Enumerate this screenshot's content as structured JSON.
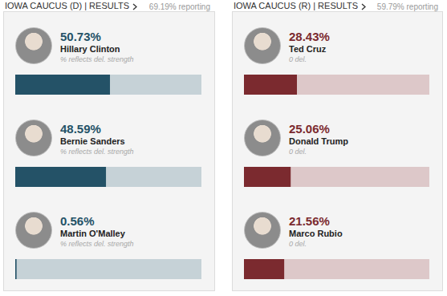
{
  "chart_data": [
    {
      "type": "bar",
      "title": "IOWA CAUCUS (D) | RESULTS",
      "subtitle": "69.19% reporting",
      "orientation": "horizontal",
      "categories": [
        "Hillary Clinton",
        "Bernie Sanders",
        "Martin O'Malley"
      ],
      "values": [
        50.73,
        48.59,
        0.56
      ],
      "value_labels": [
        "50.73%",
        "48.59%",
        "0.56%"
      ],
      "data_labels": true,
      "annotations": [
        "% reflects del. strength",
        "% reflects del. strength",
        "% reflects del. strength"
      ],
      "color": "#245267",
      "xlim": [
        0,
        100
      ],
      "tick_labels": false,
      "grid": false
    },
    {
      "type": "bar",
      "title": "IOWA CAUCUS (R) | RESULTS",
      "subtitle": "59.79% reporting",
      "orientation": "horizontal",
      "categories": [
        "Ted Cruz",
        "Donald Trump",
        "Marco Rubio"
      ],
      "values": [
        28.43,
        25.06,
        21.56
      ],
      "value_labels": [
        "28.43%",
        "25.06%",
        "21.56%"
      ],
      "data_labels": true,
      "annotations": [
        "0 del.",
        "0 del.",
        "0 del."
      ],
      "color": "#7b2a2f",
      "xlim": [
        0,
        100
      ],
      "tick_labels": false,
      "grid": false
    }
  ]
}
